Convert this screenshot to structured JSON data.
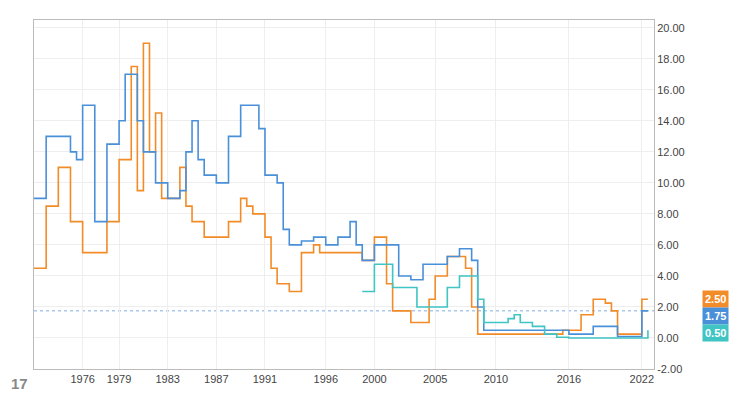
{
  "chart_data": {
    "type": "step",
    "grid": true,
    "xlim": [
      1972,
      2023
    ],
    "ylim": [
      -2,
      20.5
    ],
    "xticks": [
      1976,
      1979,
      1983,
      1987,
      1991,
      1996,
      2000,
      2005,
      2010,
      2016,
      2022
    ],
    "yticks": [
      {
        "value": -2,
        "label": "-2.00"
      },
      {
        "value": 0,
        "label": "0.00"
      },
      {
        "value": 2,
        "label": "2.00"
      },
      {
        "value": 4,
        "label": "4.00"
      },
      {
        "value": 6,
        "label": "6.00"
      },
      {
        "value": 8,
        "label": "8.00"
      },
      {
        "value": 10,
        "label": "10.00"
      },
      {
        "value": 12,
        "label": "12.00"
      },
      {
        "value": 14,
        "label": "14.00"
      },
      {
        "value": 16,
        "label": "16.00"
      },
      {
        "value": 18,
        "label": "18.00"
      },
      {
        "value": 20,
        "label": "20.00"
      }
    ],
    "series": [
      {
        "color": "#f28c28",
        "x": [
          1972,
          1973,
          1974,
          1975,
          1976,
          1977,
          1978,
          1979,
          1980,
          1980.5,
          1981,
          1981.5,
          1982,
          1982.5,
          1983,
          1984,
          1984.5,
          1985,
          1986,
          1987,
          1988,
          1989,
          1989.5,
          1990,
          1991,
          1991.5,
          1992,
          1993,
          1994,
          1995,
          1995.5,
          1996,
          1997,
          1998,
          1999,
          2000,
          2000.5,
          2001,
          2001.5,
          2002,
          2003,
          2004,
          2004.5,
          2005,
          2006,
          2006.5,
          2007,
          2007.5,
          2008,
          2008.5,
          2009,
          2010,
          2011,
          2012,
          2013,
          2014,
          2015,
          2015.5,
          2016,
          2017,
          2018,
          2018.5,
          2019,
          2019.5,
          2020,
          2020.5,
          2021,
          2022,
          2022.5
        ],
        "values": [
          4.5,
          8.5,
          11.0,
          7.5,
          5.5,
          5.5,
          7.5,
          11.5,
          17.5,
          9.5,
          19.0,
          12.0,
          14.5,
          9.0,
          9.0,
          11.0,
          8.5,
          7.5,
          6.5,
          6.5,
          7.5,
          9.0,
          8.5,
          8.0,
          6.5,
          4.5,
          3.5,
          3.0,
          5.5,
          6.0,
          5.5,
          5.5,
          5.5,
          5.5,
          5.0,
          6.5,
          6.5,
          3.5,
          1.75,
          1.75,
          1.0,
          1.0,
          2.5,
          4.0,
          5.25,
          5.25,
          5.25,
          4.5,
          2.0,
          0.25,
          0.25,
          0.25,
          0.25,
          0.25,
          0.25,
          0.25,
          0.25,
          0.5,
          0.5,
          1.5,
          2.5,
          2.5,
          2.25,
          1.75,
          0.25,
          0.25,
          0.25,
          2.5,
          2.5
        ]
      },
      {
        "color": "#4a90d9",
        "x": [
          1972,
          1973,
          1974,
          1975,
          1975.5,
          1976,
          1977,
          1978,
          1979,
          1979.5,
          1980,
          1980.5,
          1981,
          1982,
          1983,
          1984,
          1984.5,
          1985,
          1985.5,
          1986,
          1987,
          1988,
          1989,
          1990,
          1990.5,
          1991,
          1992,
          1992.5,
          1993,
          1994,
          1995,
          1996,
          1997,
          1998,
          1998.5,
          1999,
          2000,
          2001,
          2002,
          2003,
          2004,
          2005,
          2006,
          2007,
          2007.5,
          2008,
          2008.5,
          2009,
          2010,
          2011,
          2012,
          2013,
          2014,
          2015,
          2016,
          2017,
          2018,
          2019,
          2020,
          2021,
          2022,
          2022.5
        ],
        "values": [
          9.0,
          13.0,
          13.0,
          12.0,
          11.5,
          15.0,
          7.5,
          12.5,
          14.0,
          17.0,
          17.0,
          14.0,
          12.0,
          10.0,
          9.0,
          9.5,
          12.0,
          14.0,
          11.5,
          10.5,
          10.0,
          13.0,
          15.0,
          15.0,
          13.5,
          10.5,
          10.0,
          7.0,
          6.0,
          6.25,
          6.5,
          6.0,
          6.5,
          7.5,
          6.0,
          5.0,
          6.0,
          6.0,
          4.0,
          3.75,
          4.75,
          4.75,
          5.25,
          5.75,
          5.75,
          5.0,
          2.0,
          0.5,
          0.5,
          0.5,
          0.5,
          0.5,
          0.5,
          0.5,
          0.25,
          0.25,
          0.75,
          0.75,
          0.1,
          0.1,
          1.75,
          1.75
        ]
      },
      {
        "color": "#40c4c4",
        "x": [
          1999,
          2000,
          2001,
          2001.5,
          2002,
          2003,
          2003.5,
          2004,
          2005,
          2006,
          2007,
          2008,
          2008.5,
          2009,
          2010,
          2011,
          2011.5,
          2012,
          2013,
          2014,
          2015,
          2016,
          2017,
          2018,
          2019,
          2020,
          2021,
          2022,
          2022.5
        ],
        "values": [
          3.0,
          4.75,
          4.75,
          3.25,
          3.25,
          3.25,
          2.0,
          2.0,
          2.0,
          3.25,
          4.0,
          4.0,
          2.5,
          1.0,
          1.0,
          1.25,
          1.5,
          1.0,
          0.75,
          0.25,
          0.05,
          0.0,
          0.0,
          0.0,
          0.0,
          0.0,
          0.0,
          0.0,
          0.5
        ]
      }
    ],
    "hlines": [
      {
        "y": 1.75,
        "color": "#4a90d9",
        "line_style": "dotted"
      }
    ],
    "annotations": [
      {
        "text": "2.50",
        "x": 2023,
        "y": 2.5,
        "color": "#f28c28"
      },
      {
        "text": "1.75",
        "x": 2023,
        "y": 1.75,
        "color": "#4a90d9"
      },
      {
        "text": "0.50",
        "x": 2023,
        "y": 0.5,
        "color": "#40c4c4"
      },
      {
        "text": "17"
      }
    ]
  }
}
